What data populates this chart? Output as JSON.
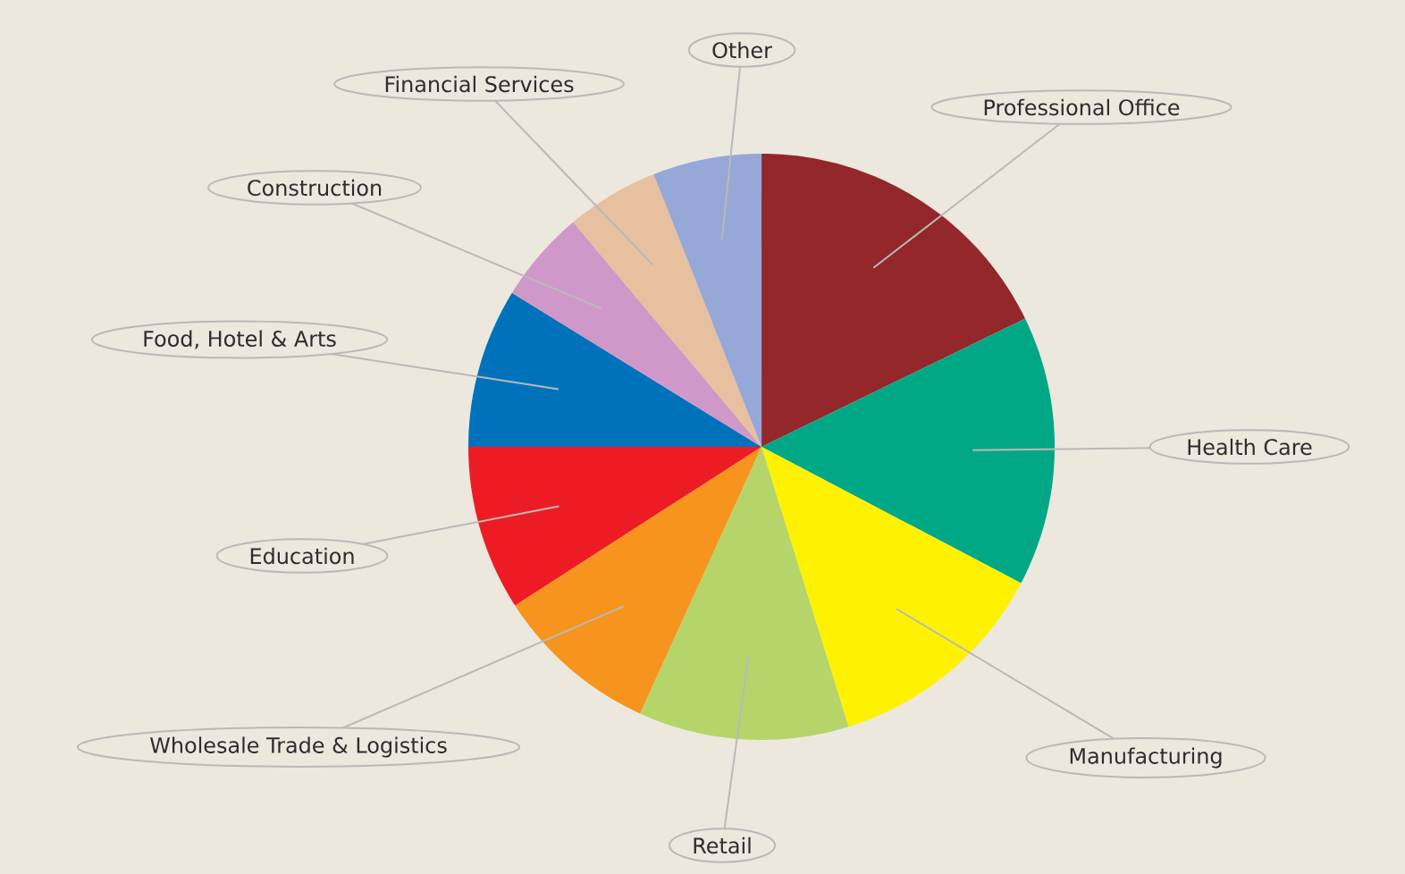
{
  "chart_data": {
    "type": "pie",
    "categories": [
      "Professional Office",
      "Health Care",
      "Manufacturing",
      "Retail",
      "Wholesale Trade & Logistics",
      "Education",
      "Food, Hotel & Arts",
      "Construction",
      "Financial Services",
      "Other"
    ],
    "values": [
      17.8,
      14.9,
      12.5,
      11.6,
      9.1,
      9.1,
      8.8,
      5.1,
      5.1,
      6.0
    ],
    "colors": [
      "#93272a",
      "#00a886",
      "#fff200",
      "#b5d56a",
      "#f7941d",
      "#ed1c24",
      "#0072bc",
      "#cf98c8",
      "#e6c09f",
      "#95a8d8"
    ]
  }
}
